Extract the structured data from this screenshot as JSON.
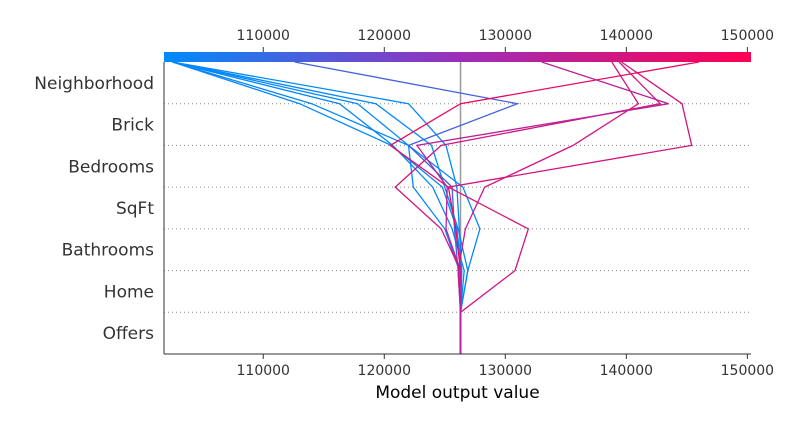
{
  "chart_data": {
    "type": "line",
    "subtype": "shap-decision-plot",
    "xlabel": "Model output value",
    "xlim": [
      101800,
      150300
    ],
    "xticks": [
      110000,
      120000,
      130000,
      140000,
      150000
    ],
    "xtick_labels": [
      "110000",
      "120000",
      "130000",
      "140000",
      "150000"
    ],
    "features": [
      "Neighborhood",
      "Brick",
      "Bedrooms",
      "SqFt",
      "Bathrooms",
      "Home",
      "Offers"
    ],
    "base_value": 126300,
    "colormap": {
      "low": "#008bfb",
      "mid": "#9b2fb9",
      "high": "#ff0052"
    },
    "grid": "dotted-row-separators",
    "series": [
      {
        "values": [
          126300,
          126300,
          126400,
          126200,
          126000,
          125100,
          122000,
          102500
        ]
      },
      {
        "values": [
          126300,
          126300,
          126900,
          126100,
          125000,
          123900,
          119300,
          102500
        ]
      },
      {
        "values": [
          126300,
          126300,
          126200,
          125000,
          122400,
          122000,
          117800,
          102500
        ]
      },
      {
        "values": [
          126300,
          126300,
          126600,
          125600,
          124000,
          120700,
          116300,
          102500
        ]
      },
      {
        "values": [
          126300,
          126300,
          126900,
          127900,
          126500,
          122000,
          114000,
          102500
        ]
      },
      {
        "values": [
          126300,
          126300,
          126400,
          126000,
          124800,
          120600,
          113000,
          102500
        ]
      },
      {
        "values": [
          126300,
          126300,
          126100,
          125800,
          125600,
          122000,
          131000,
          112600
        ]
      },
      {
        "values": [
          126300,
          126300,
          130800,
          131900,
          125300,
          145400,
          144600,
          139600
        ]
      },
      {
        "values": [
          126300,
          126300,
          126100,
          126700,
          128300,
          135600,
          141000,
          138800
        ]
      },
      {
        "values": [
          126300,
          126300,
          126300,
          124700,
          120900,
          124700,
          142800,
          139400
        ]
      },
      {
        "values": [
          126300,
          126300,
          126300,
          125900,
          125300,
          120500,
          126300,
          146000
        ]
      },
      {
        "values": [
          126300,
          126300,
          126300,
          125100,
          125200,
          122700,
          143500,
          133000
        ]
      }
    ]
  }
}
